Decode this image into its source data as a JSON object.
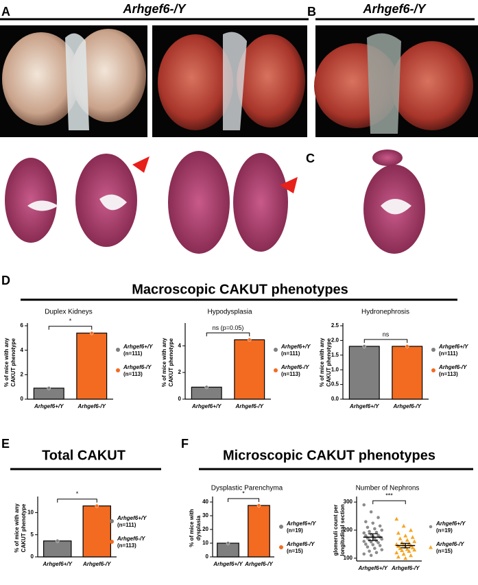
{
  "figure": {
    "panel_labels": [
      "A",
      "B",
      "C",
      "D",
      "E",
      "F"
    ],
    "photo_titles": [
      "Arhgef6-/Y",
      "Arhgef6-/Y"
    ],
    "section_titles": [
      "Macroscopic CAKUT phenotypes",
      "Total CAKUT",
      "Microscopic CAKUT phenotypes"
    ]
  },
  "chart_data": [
    {
      "type": "bar",
      "title": "Duplex Kidneys",
      "ylabel": [
        "% of mice with any",
        "CAKUT phenotype"
      ],
      "categories": [
        "Arhgef6+/Y",
        "Arhgef6-/Y"
      ],
      "values": [
        0.9,
        5.4
      ],
      "colors": [
        "#7f7f7f",
        "#f26b21"
      ],
      "ylim": [
        0,
        6
      ],
      "yticks": [
        0,
        2,
        4,
        6
      ],
      "significance": "*",
      "legend": [
        {
          "name": "Arhgef6+/Y",
          "n": "(n=111)"
        },
        {
          "name": "Arhgef6-/Y",
          "n": "(n=113)"
        }
      ]
    },
    {
      "type": "bar",
      "title": "Hypodysplasia",
      "ylabel": [
        "% of mice with any",
        "CAKUT phenotype"
      ],
      "categories": [
        "Arhgef6+/Y",
        "Arhgef6-/Y"
      ],
      "values": [
        0.9,
        4.45
      ],
      "colors": [
        "#7f7f7f",
        "#f26b21"
      ],
      "ylim": [
        0,
        5.5
      ],
      "yticks": [
        0,
        2,
        4
      ],
      "significance": "ns (p=0.05)",
      "legend": [
        {
          "name": "Arhgef6+/Y",
          "n": "(n=111)"
        },
        {
          "name": "Arhgef6-/Y",
          "n": "(n=113)"
        }
      ]
    },
    {
      "type": "bar",
      "title": "Hydronephrosis",
      "ylabel": [
        "% of mice with any",
        "CAKUT phenotype"
      ],
      "categories": [
        "Arhgef6+/Y",
        "Arhgef6-/Y"
      ],
      "values": [
        1.8,
        1.8
      ],
      "colors": [
        "#7f7f7f",
        "#f26b21"
      ],
      "ylim": [
        0,
        2.5
      ],
      "yticks": [
        {
          "value": 0,
          "label": "0.0"
        },
        0.5,
        {
          "value": 1,
          "label": "1.0"
        },
        1.5,
        {
          "value": 2,
          "label": "2.0"
        },
        2.5
      ],
      "significance": "ns",
      "legend": [
        {
          "name": "Arhgef6+/Y",
          "n": "(n=111)"
        },
        {
          "name": "Arhgef6-/Y",
          "n": "(n=113)"
        }
      ]
    },
    {
      "type": "bar",
      "title": null,
      "ylabel": [
        "% of mice with any",
        "CAKUT phenotype"
      ],
      "categories": [
        "Arhgef6+/Y",
        "Arhgef6-/Y"
      ],
      "values": [
        3.6,
        11.5
      ],
      "colors": [
        "#7f7f7f",
        "#f26b21"
      ],
      "ylim": [
        0,
        13
      ],
      "yticks": [
        0,
        5,
        10
      ],
      "significance": "*",
      "legend": [
        {
          "name": "Arhgef6+/Y",
          "n": "(n=111)"
        },
        {
          "name": "Arhgef6-/Y",
          "n": "(n=113)"
        }
      ]
    },
    {
      "type": "bar",
      "title": "Dysplastic Parenchyma",
      "ylabel": [
        "% of mice with",
        "dysplasia"
      ],
      "categories": [
        "Arhgef6+/Y",
        "Arhgef6-/Y"
      ],
      "values": [
        10,
        37.5
      ],
      "colors": [
        "#7f7f7f",
        "#f26b21"
      ],
      "ylim": [
        0,
        42
      ],
      "yticks": [
        0,
        10,
        20,
        30,
        40
      ],
      "significance": "*",
      "legend": [
        {
          "name": "Arhgef6+/Y",
          "n": "(n=19)"
        },
        {
          "name": "Arhgef6-/Y",
          "n": "(n=15)"
        }
      ]
    },
    {
      "type": "strip",
      "title": "Number of Nephrons",
      "ylabel": [
        "glomeruli count per",
        "longitudinal section"
      ],
      "categories": [
        "Arhgef6+/Y",
        "Arhgef6-/Y"
      ],
      "ylim": [
        90,
        310
      ],
      "yticks": [
        100,
        200,
        300
      ],
      "significance": "***",
      "series": [
        {
          "name": "Arhgef6+/Y",
          "n": "(n=19)",
          "color": "#8c8c8c",
          "marker": "circle",
          "mean": 175,
          "error": 12,
          "values": [
            290,
            265,
            245,
            230,
            225,
            215,
            210,
            205,
            200,
            195,
            192,
            190,
            185,
            182,
            180,
            178,
            175,
            172,
            170,
            168,
            165,
            162,
            160,
            158,
            155,
            150,
            148,
            145,
            140,
            135,
            130,
            125,
            120,
            115,
            110
          ]
        },
        {
          "name": "Arhgef6-/Y",
          "n": "(n=15)",
          "color": "#f5a623",
          "marker": "triangle",
          "mean": 145,
          "error": 8,
          "values": [
            240,
            215,
            200,
            190,
            180,
            175,
            170,
            165,
            160,
            155,
            152,
            150,
            148,
            145,
            143,
            140,
            138,
            135,
            132,
            130,
            128,
            125,
            120,
            115,
            110,
            105,
            100
          ]
        }
      ]
    }
  ]
}
